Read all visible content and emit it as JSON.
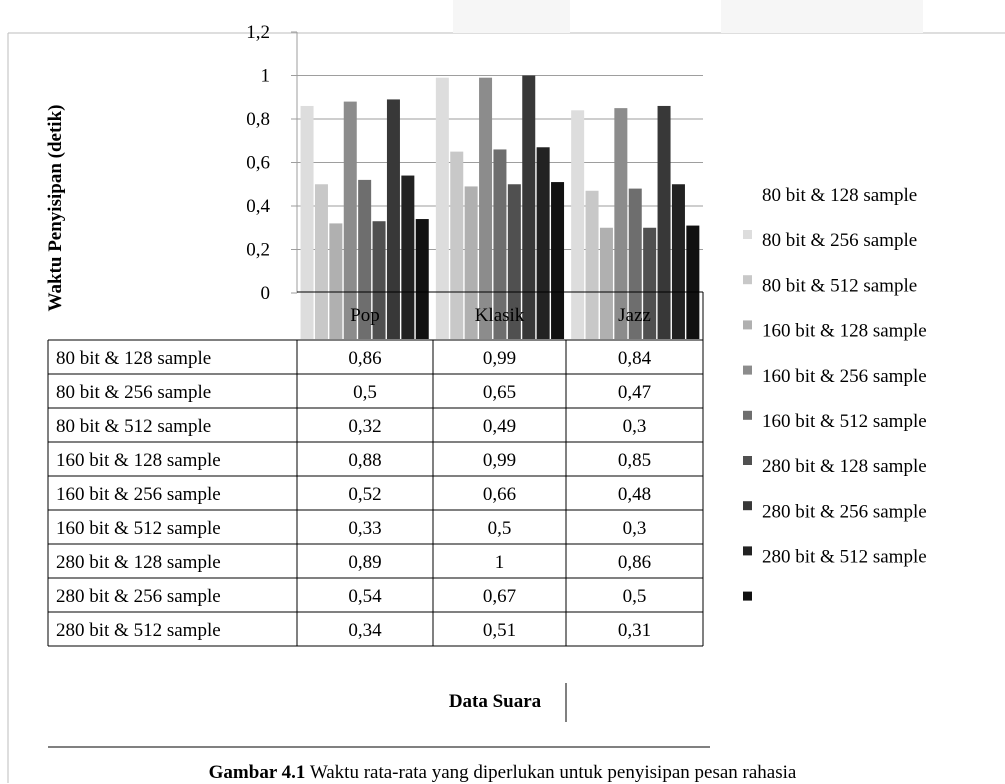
{
  "chart_data": {
    "type": "bar",
    "ylabel": "Waktu Penyisipan (detik)",
    "xlabel": "Data Suara",
    "ylim": [
      0,
      1.2
    ],
    "y_ticks": [
      "0",
      "0,2",
      "0,4",
      "0,6",
      "0,8",
      "1",
      "1,2"
    ],
    "categories": [
      "Pop",
      "Klasik",
      "Jazz"
    ],
    "grid": true,
    "legend": "right",
    "series": [
      {
        "name": "80 bit & 128 sample",
        "values": [
          0.86,
          0.99,
          0.84
        ],
        "labels": [
          "0,86",
          "0,99",
          "0,84"
        ],
        "color": "#dddddd"
      },
      {
        "name": "80 bit & 256 sample",
        "values": [
          0.5,
          0.65,
          0.47
        ],
        "labels": [
          "0,5",
          "0,65",
          "0,47"
        ],
        "color": "#c8c8c8"
      },
      {
        "name": "80 bit & 512 sample",
        "values": [
          0.32,
          0.49,
          0.3
        ],
        "labels": [
          "0,32",
          "0,49",
          "0,3"
        ],
        "color": "#b0b0b0"
      },
      {
        "name": "160 bit & 128 sample",
        "values": [
          0.88,
          0.99,
          0.85
        ],
        "labels": [
          "0,88",
          "0,99",
          "0,85"
        ],
        "color": "#8c8c8c"
      },
      {
        "name": "160 bit & 256 sample",
        "values": [
          0.52,
          0.66,
          0.48
        ],
        "labels": [
          "0,52",
          "0,66",
          "0,48"
        ],
        "color": "#6e6e6e"
      },
      {
        "name": "160 bit & 512 sample",
        "values": [
          0.33,
          0.5,
          0.3
        ],
        "labels": [
          "0,33",
          "0,5",
          "0,3"
        ],
        "color": "#505050"
      },
      {
        "name": "280 bit & 128 sample",
        "values": [
          0.89,
          1.0,
          0.86
        ],
        "labels": [
          "0,89",
          "1",
          "0,86"
        ],
        "color": "#383838"
      },
      {
        "name": "280 bit & 256 sample",
        "values": [
          0.54,
          0.67,
          0.5
        ],
        "labels": [
          "0,54",
          "0,67",
          "0,5"
        ],
        "color": "#222222"
      },
      {
        "name": "280 bit & 512 sample",
        "values": [
          0.34,
          0.51,
          0.31
        ],
        "labels": [
          "0,34",
          "0,51",
          "0,31"
        ],
        "color": "#111111"
      }
    ]
  },
  "caption": {
    "label": "Gambar 4.1",
    "text": " Waktu rata-rata yang diperlukan untuk penyisipan pesan rahasia"
  }
}
